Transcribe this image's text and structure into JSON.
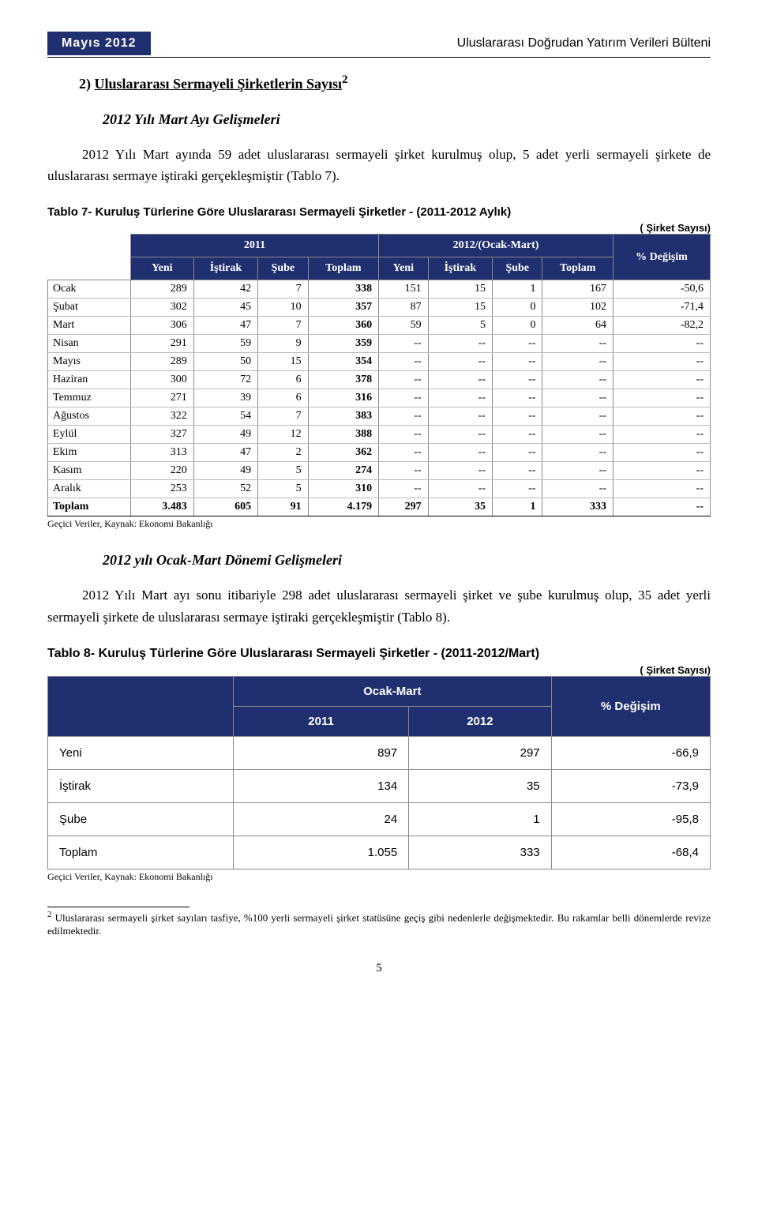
{
  "header": {
    "date": "Mayıs 2012",
    "bulletin": "Uluslararası Doğrudan Yatırım Verileri Bülteni"
  },
  "section": {
    "number": "2)",
    "title": "Uluslararası Sermayeli Şirketlerin Sayısı",
    "sup": "2"
  },
  "sub1": {
    "title": "2012 Yılı Mart Ayı Gelişmeleri",
    "paragraph": "2012 Yılı Mart ayında 59 adet uluslararası sermayeli şirket kurulmuş olup, 5 adet yerli sermayeli şirkete de uluslararası sermaye iştiraki gerçekleşmiştir (Tablo 7)."
  },
  "table7": {
    "caption": "Tablo 7- Kuruluş Türlerine Göre Uluslararası Sermayeli Şirketler - (2011-2012 Aylık)",
    "unit": "( Şirket Sayısı)",
    "group_headers": [
      "2011",
      "2012/(Ocak-Mart)"
    ],
    "sub_headers": [
      "Yeni",
      "İştirak",
      "Şube",
      "Toplam",
      "Yeni",
      "İştirak",
      "Şube",
      "Toplam"
    ],
    "change_header": "% Değişim",
    "rows": [
      {
        "label": "Ocak",
        "cells": [
          "289",
          "42",
          "7",
          "338",
          "151",
          "15",
          "1",
          "167",
          "-50,6"
        ]
      },
      {
        "label": "Şubat",
        "cells": [
          "302",
          "45",
          "10",
          "357",
          "87",
          "15",
          "0",
          "102",
          "-71,4"
        ]
      },
      {
        "label": "Mart",
        "cells": [
          "306",
          "47",
          "7",
          "360",
          "59",
          "5",
          "0",
          "64",
          "-82,2"
        ]
      },
      {
        "label": "Nisan",
        "cells": [
          "291",
          "59",
          "9",
          "359",
          "--",
          "--",
          "--",
          "--",
          "--"
        ]
      },
      {
        "label": "Mayıs",
        "cells": [
          "289",
          "50",
          "15",
          "354",
          "--",
          "--",
          "--",
          "--",
          "--"
        ]
      },
      {
        "label": "Haziran",
        "cells": [
          "300",
          "72",
          "6",
          "378",
          "--",
          "--",
          "--",
          "--",
          "--"
        ]
      },
      {
        "label": "Temmuz",
        "cells": [
          "271",
          "39",
          "6",
          "316",
          "--",
          "--",
          "--",
          "--",
          "--"
        ]
      },
      {
        "label": "Ağustos",
        "cells": [
          "322",
          "54",
          "7",
          "383",
          "--",
          "--",
          "--",
          "--",
          "--"
        ]
      },
      {
        "label": "Eylül",
        "cells": [
          "327",
          "49",
          "12",
          "388",
          "--",
          "--",
          "--",
          "--",
          "--"
        ]
      },
      {
        "label": "Ekim",
        "cells": [
          "313",
          "47",
          "2",
          "362",
          "--",
          "--",
          "--",
          "--",
          "--"
        ]
      },
      {
        "label": "Kasım",
        "cells": [
          "220",
          "49",
          "5",
          "274",
          "--",
          "--",
          "--",
          "--",
          "--"
        ]
      },
      {
        "label": "Aralık",
        "cells": [
          "253",
          "52",
          "5",
          "310",
          "--",
          "--",
          "--",
          "--",
          "--"
        ]
      }
    ],
    "total": {
      "label": "Toplam",
      "cells": [
        "3.483",
        "605",
        "91",
        "4.179",
        "297",
        "35",
        "1",
        "333",
        "--"
      ]
    },
    "source": "Geçici Veriler, Kaynak: Ekonomi Bakanlığı"
  },
  "sub2": {
    "title": "2012 yılı Ocak-Mart Dönemi Gelişmeleri",
    "paragraph": "2012 Yılı Mart ayı sonu itibariyle 298 adet uluslararası sermayeli şirket ve şube kurulmuş olup, 35 adet yerli sermayeli şirkete de uluslararası sermaye iştiraki gerçekleşmiştir (Tablo 8)."
  },
  "table8": {
    "caption": "Tablo 8- Kuruluş Türlerine Göre Uluslararası Sermayeli Şirketler - (2011-2012/Mart)",
    "unit": "( Şirket Sayısı)",
    "period_header": "Ocak-Mart",
    "year_headers": [
      "2011",
      "2012"
    ],
    "change_header": "% Değişim",
    "rows": [
      {
        "label": "Yeni",
        "cells": [
          "897",
          "297",
          "-66,9"
        ]
      },
      {
        "label": "İştirak",
        "cells": [
          "134",
          "35",
          "-73,9"
        ]
      },
      {
        "label": "Şube",
        "cells": [
          "24",
          "1",
          "-95,8"
        ]
      },
      {
        "label": "Toplam",
        "cells": [
          "1.055",
          "333",
          "-68,4"
        ]
      }
    ],
    "source": "Geçici Veriler, Kaynak: Ekonomi Bakanlığı"
  },
  "footnote": {
    "marker": "2",
    "text": "Uluslararası sermayeli şirket sayıları tasfiye, %100 yerli sermayeli şirket statüsüne geçiş gibi nedenlerle değişmektedir. Bu rakamlar belli dönemlerde revize edilmektedir."
  },
  "page_number": "5"
}
